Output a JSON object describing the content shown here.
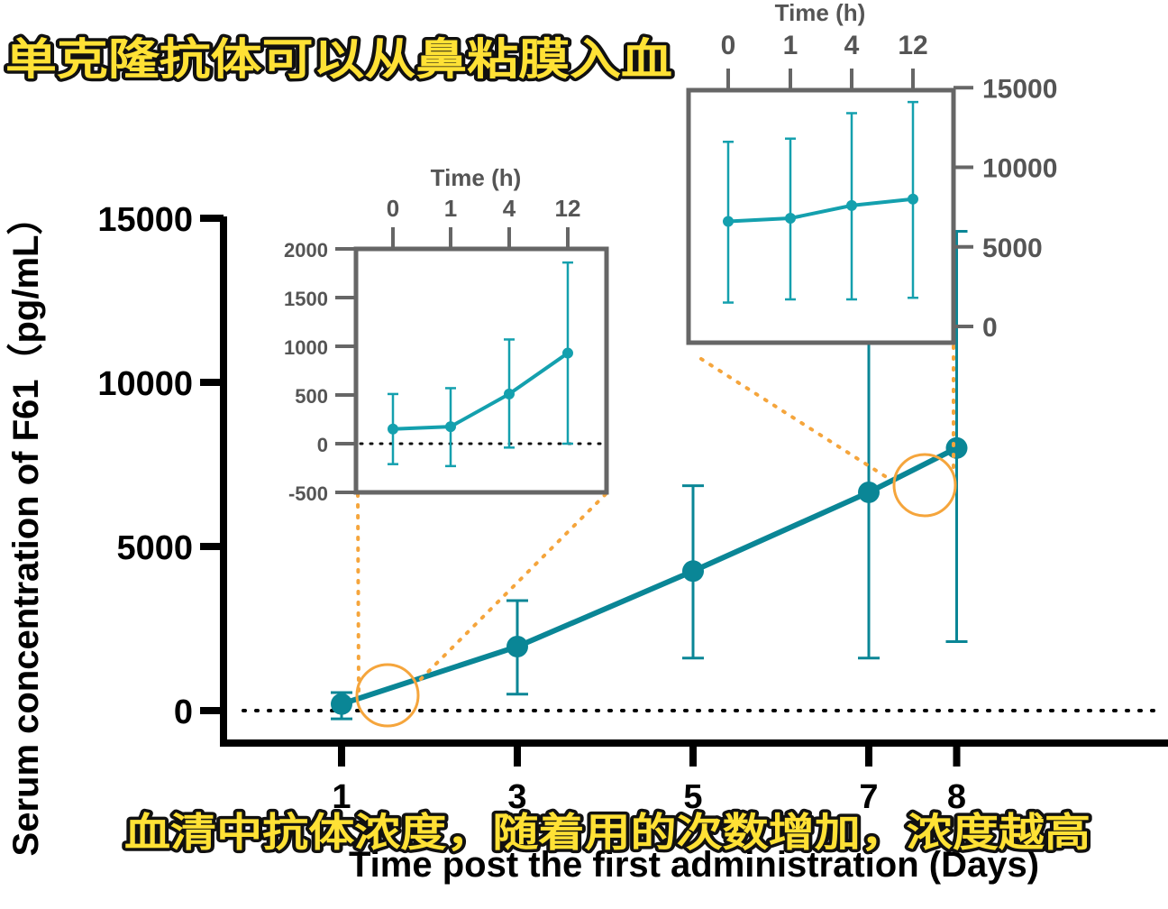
{
  "caption_top": "单克隆抗体可以从鼻粘膜入血",
  "caption_bottom": "血清中抗体浓度，随着用的次数增加，浓度越高",
  "colors": {
    "series": "#0a8696",
    "inset_series": "#14a0ae",
    "highlight": "#f5a53c",
    "inset_frame": "#666666",
    "caption_fill": "#ffe135"
  },
  "chart_data": [
    {
      "id": "main",
      "type": "line",
      "xlabel": "Time post the first administration (Days)",
      "ylabel": "Serum concentration of F61（pg/mL）",
      "categories": [
        "1",
        "3",
        "5",
        "7",
        "8"
      ],
      "x": [
        1,
        3,
        5,
        7,
        8
      ],
      "yticks": [
        "0",
        "5000",
        "10000",
        "15000"
      ],
      "ylim": [
        -1000,
        15000
      ],
      "reference_line_y": 0,
      "series": [
        {
          "values": [
            200,
            1950,
            4250,
            6650,
            8000
          ],
          "error_lower": [
            -250,
            500,
            1600,
            1600,
            2100
          ],
          "error_upper": [
            550,
            3350,
            6850,
            11600,
            14600
          ]
        }
      ]
    },
    {
      "id": "inset-early",
      "type": "line",
      "xlabel": "Time (h)",
      "categories": [
        "0",
        "1",
        "4",
        "12"
      ],
      "yticks": [
        "2000",
        "1500",
        "1000",
        "500",
        "0",
        "-500"
      ],
      "ylim": [
        -500,
        2000
      ],
      "reference_line_y": 0,
      "series": [
        {
          "values": [
            150,
            175,
            510,
            930
          ],
          "error_lower": [
            -210,
            -230,
            -40,
            0
          ],
          "error_upper": [
            510,
            570,
            1070,
            1860
          ]
        }
      ]
    },
    {
      "id": "inset-late",
      "type": "line",
      "xlabel": "Time (h)",
      "categories": [
        "0",
        "1",
        "4",
        "12"
      ],
      "yticks": [
        "15000",
        "10000",
        "5000",
        "0"
      ],
      "ylim": [
        0,
        15000
      ],
      "series": [
        {
          "values": [
            6600,
            6800,
            7600,
            8000
          ],
          "error_lower": [
            1500,
            1700,
            1700,
            1800
          ],
          "error_upper": [
            11600,
            11800,
            13400,
            14100
          ]
        }
      ]
    }
  ]
}
